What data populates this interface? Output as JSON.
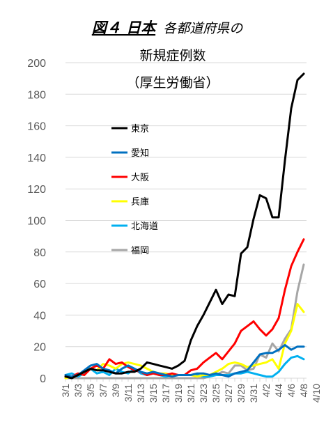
{
  "chart_data": {
    "type": "line",
    "title_parts": {
      "bold": "図４ 日本",
      "italic": "各都道府県の",
      "line2": "新規症例数",
      "line3": "（厚生労働省）"
    },
    "ylim": [
      0,
      200
    ],
    "yticks": [
      0,
      20,
      40,
      60,
      80,
      100,
      120,
      140,
      160,
      180,
      200
    ],
    "x_tick_labels": [
      "3/1",
      "3/3",
      "3/5",
      "3/7",
      "3/9",
      "3/11",
      "3/13",
      "3/15",
      "3/17",
      "3/19",
      "3/21",
      "3/23",
      "3/25",
      "3/27",
      "3/29",
      "3/31",
      "4/2",
      "4/4",
      "4/6",
      "4/8",
      "4/10"
    ],
    "grid": "horizontal",
    "legend_position": "inside-left",
    "series": [
      {
        "name": "東京",
        "color": "#000000",
        "values": [
          1,
          0,
          2,
          4,
          6,
          5,
          5,
          4,
          3,
          3,
          4,
          4,
          6,
          10,
          9,
          8,
          7,
          6,
          8,
          11,
          24,
          33,
          40,
          48,
          56,
          47,
          53,
          52,
          79,
          83,
          101,
          116,
          114,
          102,
          102,
          138,
          171,
          189,
          193
        ]
      },
      {
        "name": "愛知",
        "color": "#0070C0",
        "values": [
          2,
          1,
          2,
          5,
          8,
          9,
          6,
          5,
          3,
          6,
          8,
          6,
          4,
          3,
          4,
          3,
          2,
          1,
          2,
          2,
          2,
          3,
          3,
          2,
          3,
          2,
          1,
          3,
          4,
          5,
          10,
          15,
          16,
          16,
          18,
          21,
          18,
          20,
          20
        ]
      },
      {
        "name": "大阪",
        "color": "#FF0000",
        "values": [
          1,
          1,
          3,
          2,
          6,
          8,
          6,
          12,
          9,
          10,
          7,
          5,
          4,
          2,
          3,
          2,
          2,
          3,
          2,
          2,
          5,
          6,
          10,
          13,
          16,
          12,
          17,
          22,
          30,
          33,
          36,
          31,
          27,
          31,
          38,
          56,
          71,
          80,
          88
        ]
      },
      {
        "name": "兵庫",
        "color": "#FFFF00",
        "values": [
          0,
          1,
          2,
          4,
          6,
          5,
          9,
          8,
          6,
          9,
          10,
          9,
          8,
          6,
          4,
          3,
          3,
          2,
          2,
          2,
          2,
          1,
          2,
          2,
          4,
          6,
          9,
          10,
          9,
          7,
          8,
          9,
          10,
          12,
          6,
          22,
          30,
          47,
          42
        ]
      },
      {
        "name": "北海道",
        "color": "#00B0F0",
        "values": [
          2,
          3,
          1,
          3,
          6,
          3,
          4,
          2,
          6,
          4,
          3,
          6,
          3,
          2,
          3,
          2,
          1,
          2,
          2,
          2,
          2,
          2,
          1,
          1,
          2,
          2,
          2,
          3,
          3,
          4,
          3,
          2,
          1,
          1,
          4,
          9,
          13,
          14,
          12
        ]
      },
      {
        "name": "福岡",
        "color": "#A6A6A6",
        "values": [
          0,
          0,
          0,
          0,
          0,
          0,
          0,
          0,
          0,
          0,
          0,
          0,
          0,
          0,
          0,
          0,
          0,
          0,
          0,
          0,
          0,
          0,
          0,
          1,
          2,
          4,
          3,
          8,
          8,
          5,
          6,
          15,
          13,
          22,
          17,
          25,
          31,
          55,
          72
        ]
      }
    ]
  }
}
